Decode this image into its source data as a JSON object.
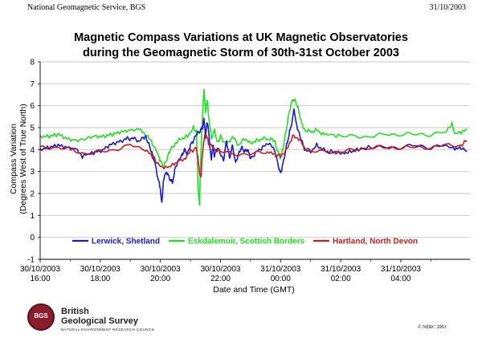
{
  "header": {
    "left": "National Geomagnetic Service, BGS",
    "right": "31/10/2003"
  },
  "footer": {
    "logo_name_line1": "British",
    "logo_name_line2": "Geological Survey",
    "logo_subtitle": "NATURAL ENVIRONMENT RESEARCH COUNCIL",
    "logo_emblem": "BGS",
    "copyright": "© NERC 2003"
  },
  "chart_data": {
    "type": "line",
    "title": "Magnetic Compass Variations at UK Magnetic Observatories",
    "subtitle": "during the Geomagnetic Storm of 30th-31st October 2003",
    "xlabel": "Date and Time (GMT)",
    "ylabel": "Compass Variation",
    "ylabel2": "(Degrees West of True North)",
    "xlim": [
      16,
      30.3
    ],
    "ylim": [
      -1,
      8
    ],
    "yticks": [
      -1,
      0,
      1,
      2,
      3,
      4,
      5,
      6,
      7,
      8
    ],
    "xticks": [
      {
        "x": 16,
        "line1": "30/10/2003",
        "line2": "16:00"
      },
      {
        "x": 18,
        "line1": "30/10/2003",
        "line2": "18:00"
      },
      {
        "x": 20,
        "line1": "30/10/2003",
        "line2": "20:00"
      },
      {
        "x": 22,
        "line1": "30/10/2003",
        "line2": "22:00"
      },
      {
        "x": 24,
        "line1": "31/10/2003",
        "line2": "00:00"
      },
      {
        "x": 26,
        "line1": "31/10/2003",
        "line2": "02:00"
      },
      {
        "x": 28,
        "line1": "31/10/2003",
        "line2": "04:00"
      }
    ],
    "grid": "horizontal",
    "legend_position": "bottom-inside",
    "series": [
      {
        "name": "Lerwick, Shetland",
        "color": "#1a1acc",
        "points": [
          [
            16,
            4.0
          ],
          [
            16.3,
            4.1
          ],
          [
            16.6,
            4.2
          ],
          [
            16.9,
            4.1
          ],
          [
            17.2,
            4.0
          ],
          [
            17.4,
            3.7
          ],
          [
            17.6,
            3.8
          ],
          [
            17.9,
            3.9
          ],
          [
            18.1,
            4.0
          ],
          [
            18.3,
            4.2
          ],
          [
            18.5,
            4.3
          ],
          [
            18.7,
            4.4
          ],
          [
            18.9,
            4.5
          ],
          [
            19.1,
            4.5
          ],
          [
            19.3,
            4.4
          ],
          [
            19.5,
            4.6
          ],
          [
            19.6,
            4.3
          ],
          [
            19.7,
            3.9
          ],
          [
            19.8,
            3.5
          ],
          [
            19.9,
            2.8
          ],
          [
            20.0,
            2.2
          ],
          [
            20.05,
            1.5
          ],
          [
            20.1,
            2.6
          ],
          [
            20.2,
            3.0
          ],
          [
            20.3,
            2.7
          ],
          [
            20.4,
            2.5
          ],
          [
            20.5,
            3.2
          ],
          [
            20.6,
            3.5
          ],
          [
            20.7,
            3.7
          ],
          [
            20.8,
            4.0
          ],
          [
            20.9,
            3.8
          ],
          [
            21.0,
            4.2
          ],
          [
            21.1,
            4.4
          ],
          [
            21.2,
            4.7
          ],
          [
            21.3,
            4.8
          ],
          [
            21.4,
            5.0
          ],
          [
            21.45,
            5.4
          ],
          [
            21.5,
            4.6
          ],
          [
            21.55,
            5.2
          ],
          [
            21.6,
            5.0
          ],
          [
            21.65,
            4.0
          ],
          [
            21.7,
            3.6
          ],
          [
            21.75,
            4.2
          ],
          [
            21.8,
            3.7
          ],
          [
            21.9,
            4.1
          ],
          [
            22.0,
            3.8
          ],
          [
            22.1,
            3.5
          ],
          [
            22.2,
            4.4
          ],
          [
            22.3,
            3.6
          ],
          [
            22.4,
            4.2
          ],
          [
            22.5,
            3.4
          ],
          [
            22.6,
            3.8
          ],
          [
            22.7,
            4.1
          ],
          [
            22.8,
            3.9
          ],
          [
            22.9,
            4.0
          ],
          [
            23.0,
            3.6
          ],
          [
            23.2,
            3.9
          ],
          [
            23.4,
            4.1
          ],
          [
            23.6,
            4.3
          ],
          [
            23.8,
            4.0
          ],
          [
            23.9,
            3.4
          ],
          [
            24.0,
            2.9
          ],
          [
            24.05,
            3.2
          ],
          [
            24.1,
            3.5
          ],
          [
            24.2,
            4.2
          ],
          [
            24.3,
            4.8
          ],
          [
            24.4,
            5.4
          ],
          [
            24.45,
            5.9
          ],
          [
            24.5,
            5.3
          ],
          [
            24.6,
            4.8
          ],
          [
            24.7,
            4.4
          ],
          [
            24.8,
            4.0
          ],
          [
            25.0,
            3.9
          ],
          [
            25.2,
            4.2
          ],
          [
            25.4,
            4.0
          ],
          [
            25.6,
            3.9
          ],
          [
            25.8,
            3.9
          ],
          [
            26.0,
            3.8
          ],
          [
            26.3,
            3.9
          ],
          [
            26.6,
            4.0
          ],
          [
            27.0,
            4.1
          ],
          [
            27.5,
            4.1
          ],
          [
            28.0,
            4.1
          ],
          [
            28.5,
            4.2
          ],
          [
            29.0,
            4.1
          ],
          [
            29.5,
            4.2
          ],
          [
            29.8,
            4.0
          ],
          [
            30.0,
            4.1
          ],
          [
            30.2,
            3.9
          ]
        ]
      },
      {
        "name": "Eskdalemuir, Scottish Borders",
        "color": "#22e022",
        "points": [
          [
            16,
            4.6
          ],
          [
            16.3,
            4.6
          ],
          [
            16.6,
            4.7
          ],
          [
            16.9,
            4.5
          ],
          [
            17.2,
            4.4
          ],
          [
            17.5,
            4.5
          ],
          [
            17.8,
            4.6
          ],
          [
            18.1,
            4.6
          ],
          [
            18.4,
            4.7
          ],
          [
            18.7,
            4.8
          ],
          [
            19.0,
            4.9
          ],
          [
            19.3,
            4.9
          ],
          [
            19.5,
            4.7
          ],
          [
            19.7,
            4.4
          ],
          [
            19.9,
            3.8
          ],
          [
            20.0,
            3.5
          ],
          [
            20.1,
            3.2
          ],
          [
            20.2,
            3.5
          ],
          [
            20.3,
            3.9
          ],
          [
            20.5,
            4.3
          ],
          [
            20.7,
            4.5
          ],
          [
            20.9,
            4.6
          ],
          [
            21.1,
            5.0
          ],
          [
            21.2,
            4.8
          ],
          [
            21.25,
            2.4
          ],
          [
            21.3,
            1.4
          ],
          [
            21.35,
            3.9
          ],
          [
            21.4,
            5.5
          ],
          [
            21.45,
            6.8
          ],
          [
            21.5,
            5.7
          ],
          [
            21.55,
            6.3
          ],
          [
            21.6,
            5.6
          ],
          [
            21.7,
            4.5
          ],
          [
            21.8,
            4.9
          ],
          [
            21.9,
            4.3
          ],
          [
            22.0,
            4.6
          ],
          [
            22.2,
            4.2
          ],
          [
            22.4,
            4.6
          ],
          [
            22.6,
            4.2
          ],
          [
            22.8,
            4.5
          ],
          [
            23.0,
            4.3
          ],
          [
            23.2,
            4.4
          ],
          [
            23.4,
            4.5
          ],
          [
            23.6,
            4.5
          ],
          [
            23.8,
            4.4
          ],
          [
            23.9,
            3.9
          ],
          [
            24.0,
            3.6
          ],
          [
            24.1,
            4.2
          ],
          [
            24.2,
            5.0
          ],
          [
            24.3,
            5.8
          ],
          [
            24.4,
            6.3
          ],
          [
            24.5,
            6.2
          ],
          [
            24.6,
            5.8
          ],
          [
            24.7,
            5.2
          ],
          [
            24.8,
            4.9
          ],
          [
            25.0,
            4.8
          ],
          [
            25.2,
            4.9
          ],
          [
            25.4,
            4.7
          ],
          [
            25.6,
            4.7
          ],
          [
            26.0,
            4.6
          ],
          [
            26.5,
            4.6
          ],
          [
            27.0,
            4.6
          ],
          [
            27.5,
            4.7
          ],
          [
            28.0,
            4.7
          ],
          [
            28.5,
            4.7
          ],
          [
            29.0,
            4.7
          ],
          [
            29.5,
            4.8
          ],
          [
            29.7,
            5.2
          ],
          [
            29.8,
            4.7
          ],
          [
            30.0,
            4.8
          ],
          [
            30.2,
            4.9
          ]
        ]
      },
      {
        "name": "Hartland, North Devon",
        "color": "#c81e1e",
        "points": [
          [
            16,
            4.1
          ],
          [
            16.5,
            4.1
          ],
          [
            17.0,
            4.0
          ],
          [
            17.5,
            3.8
          ],
          [
            18.0,
            3.9
          ],
          [
            18.5,
            4.0
          ],
          [
            19.0,
            4.2
          ],
          [
            19.5,
            4.0
          ],
          [
            19.8,
            3.6
          ],
          [
            20.0,
            3.2
          ],
          [
            20.3,
            3.2
          ],
          [
            20.5,
            3.4
          ],
          [
            20.8,
            3.6
          ],
          [
            21.0,
            3.9
          ],
          [
            21.2,
            4.1
          ],
          [
            21.3,
            3.0
          ],
          [
            21.35,
            2.7
          ],
          [
            21.4,
            3.9
          ],
          [
            21.5,
            4.8
          ],
          [
            21.6,
            4.3
          ],
          [
            21.8,
            4.0
          ],
          [
            22.0,
            3.9
          ],
          [
            22.5,
            3.8
          ],
          [
            23.0,
            3.8
          ],
          [
            23.5,
            3.9
          ],
          [
            23.8,
            3.8
          ],
          [
            24.0,
            3.7
          ],
          [
            24.2,
            4.0
          ],
          [
            24.4,
            4.6
          ],
          [
            24.6,
            4.5
          ],
          [
            24.8,
            4.1
          ],
          [
            25.0,
            3.9
          ],
          [
            25.5,
            3.9
          ],
          [
            26.0,
            3.9
          ],
          [
            26.5,
            4.0
          ],
          [
            27.0,
            4.1
          ],
          [
            27.5,
            4.1
          ],
          [
            28.0,
            4.1
          ],
          [
            28.5,
            4.1
          ],
          [
            29.0,
            4.1
          ],
          [
            29.5,
            4.2
          ],
          [
            30.0,
            4.2
          ],
          [
            30.2,
            4.4
          ]
        ]
      }
    ]
  }
}
